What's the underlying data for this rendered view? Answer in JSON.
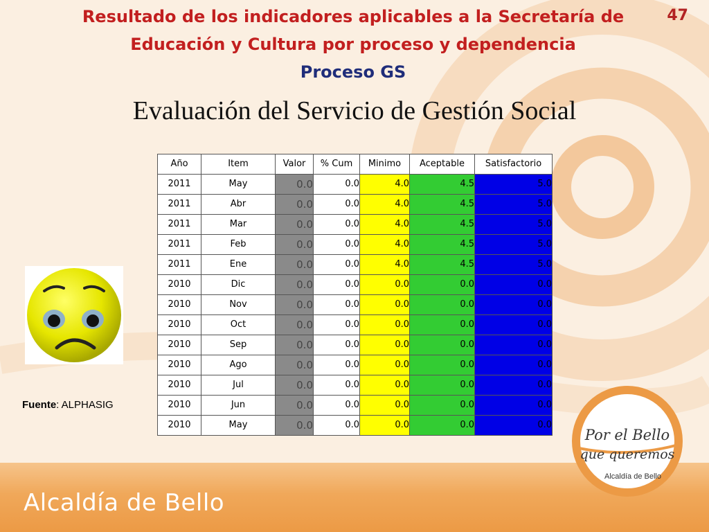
{
  "slide_number": "47",
  "title": {
    "line1": "Resultado de los indicadores aplicables a la Secretaría de",
    "line2": "Educación y Cultura por proceso y dependencia",
    "subtitle": "Proceso GS"
  },
  "main_title": "Evaluación del Servicio de Gestión Social",
  "table": {
    "headers": [
      "Año",
      "Item",
      "Valor",
      "% Cum",
      "Minimo",
      "Aceptable",
      "Satisfactorio"
    ],
    "rows": [
      [
        "2011",
        "May",
        "0.0",
        "0.0",
        "4.0",
        "4.5",
        "5.0"
      ],
      [
        "2011",
        "Abr",
        "0.0",
        "0.0",
        "4.0",
        "4.5",
        "5.0"
      ],
      [
        "2011",
        "Mar",
        "0.0",
        "0.0",
        "4.0",
        "4.5",
        "5.0"
      ],
      [
        "2011",
        "Feb",
        "0.0",
        "0.0",
        "4.0",
        "4.5",
        "5.0"
      ],
      [
        "2011",
        "Ene",
        "0.0",
        "0.0",
        "4.0",
        "4.5",
        "5.0"
      ],
      [
        "2010",
        "Dic",
        "0.0",
        "0.0",
        "0.0",
        "0.0",
        "0.0"
      ],
      [
        "2010",
        "Nov",
        "0.0",
        "0.0",
        "0.0",
        "0.0",
        "0.0"
      ],
      [
        "2010",
        "Oct",
        "0.0",
        "0.0",
        "0.0",
        "0.0",
        "0.0"
      ],
      [
        "2010",
        "Sep",
        "0.0",
        "0.0",
        "0.0",
        "0.0",
        "0.0"
      ],
      [
        "2010",
        "Ago",
        "0.0",
        "0.0",
        "0.0",
        "0.0",
        "0.0"
      ],
      [
        "2010",
        "Jul",
        "0.0",
        "0.0",
        "0.0",
        "0.0",
        "0.0"
      ],
      [
        "2010",
        "Jun",
        "0.0",
        "0.0",
        "0.0",
        "0.0",
        "0.0"
      ],
      [
        "2010",
        "May",
        "0.0",
        "0.0",
        "0.0",
        "0.0",
        "0.0"
      ]
    ]
  },
  "source": {
    "label": "Fuente",
    "value": ": ALPHASIG"
  },
  "logo": {
    "line1": "Por el Bello",
    "line2": "que queremos",
    "caption": "Alcaldía de Bello"
  },
  "footer_brand": "Alcaldía de Bello",
  "icons": {
    "status": "sad-face-icon"
  },
  "colors": {
    "title_red": "#c21f1f",
    "subtitle_blue": "#1f2d7a",
    "valor_gray": "#8a8a8a",
    "minimo_yellow": "#ffff00",
    "aceptable_green": "#33cc33",
    "satisfactorio_blue": "#0000e6",
    "brand_orange": "#ec9a45"
  }
}
